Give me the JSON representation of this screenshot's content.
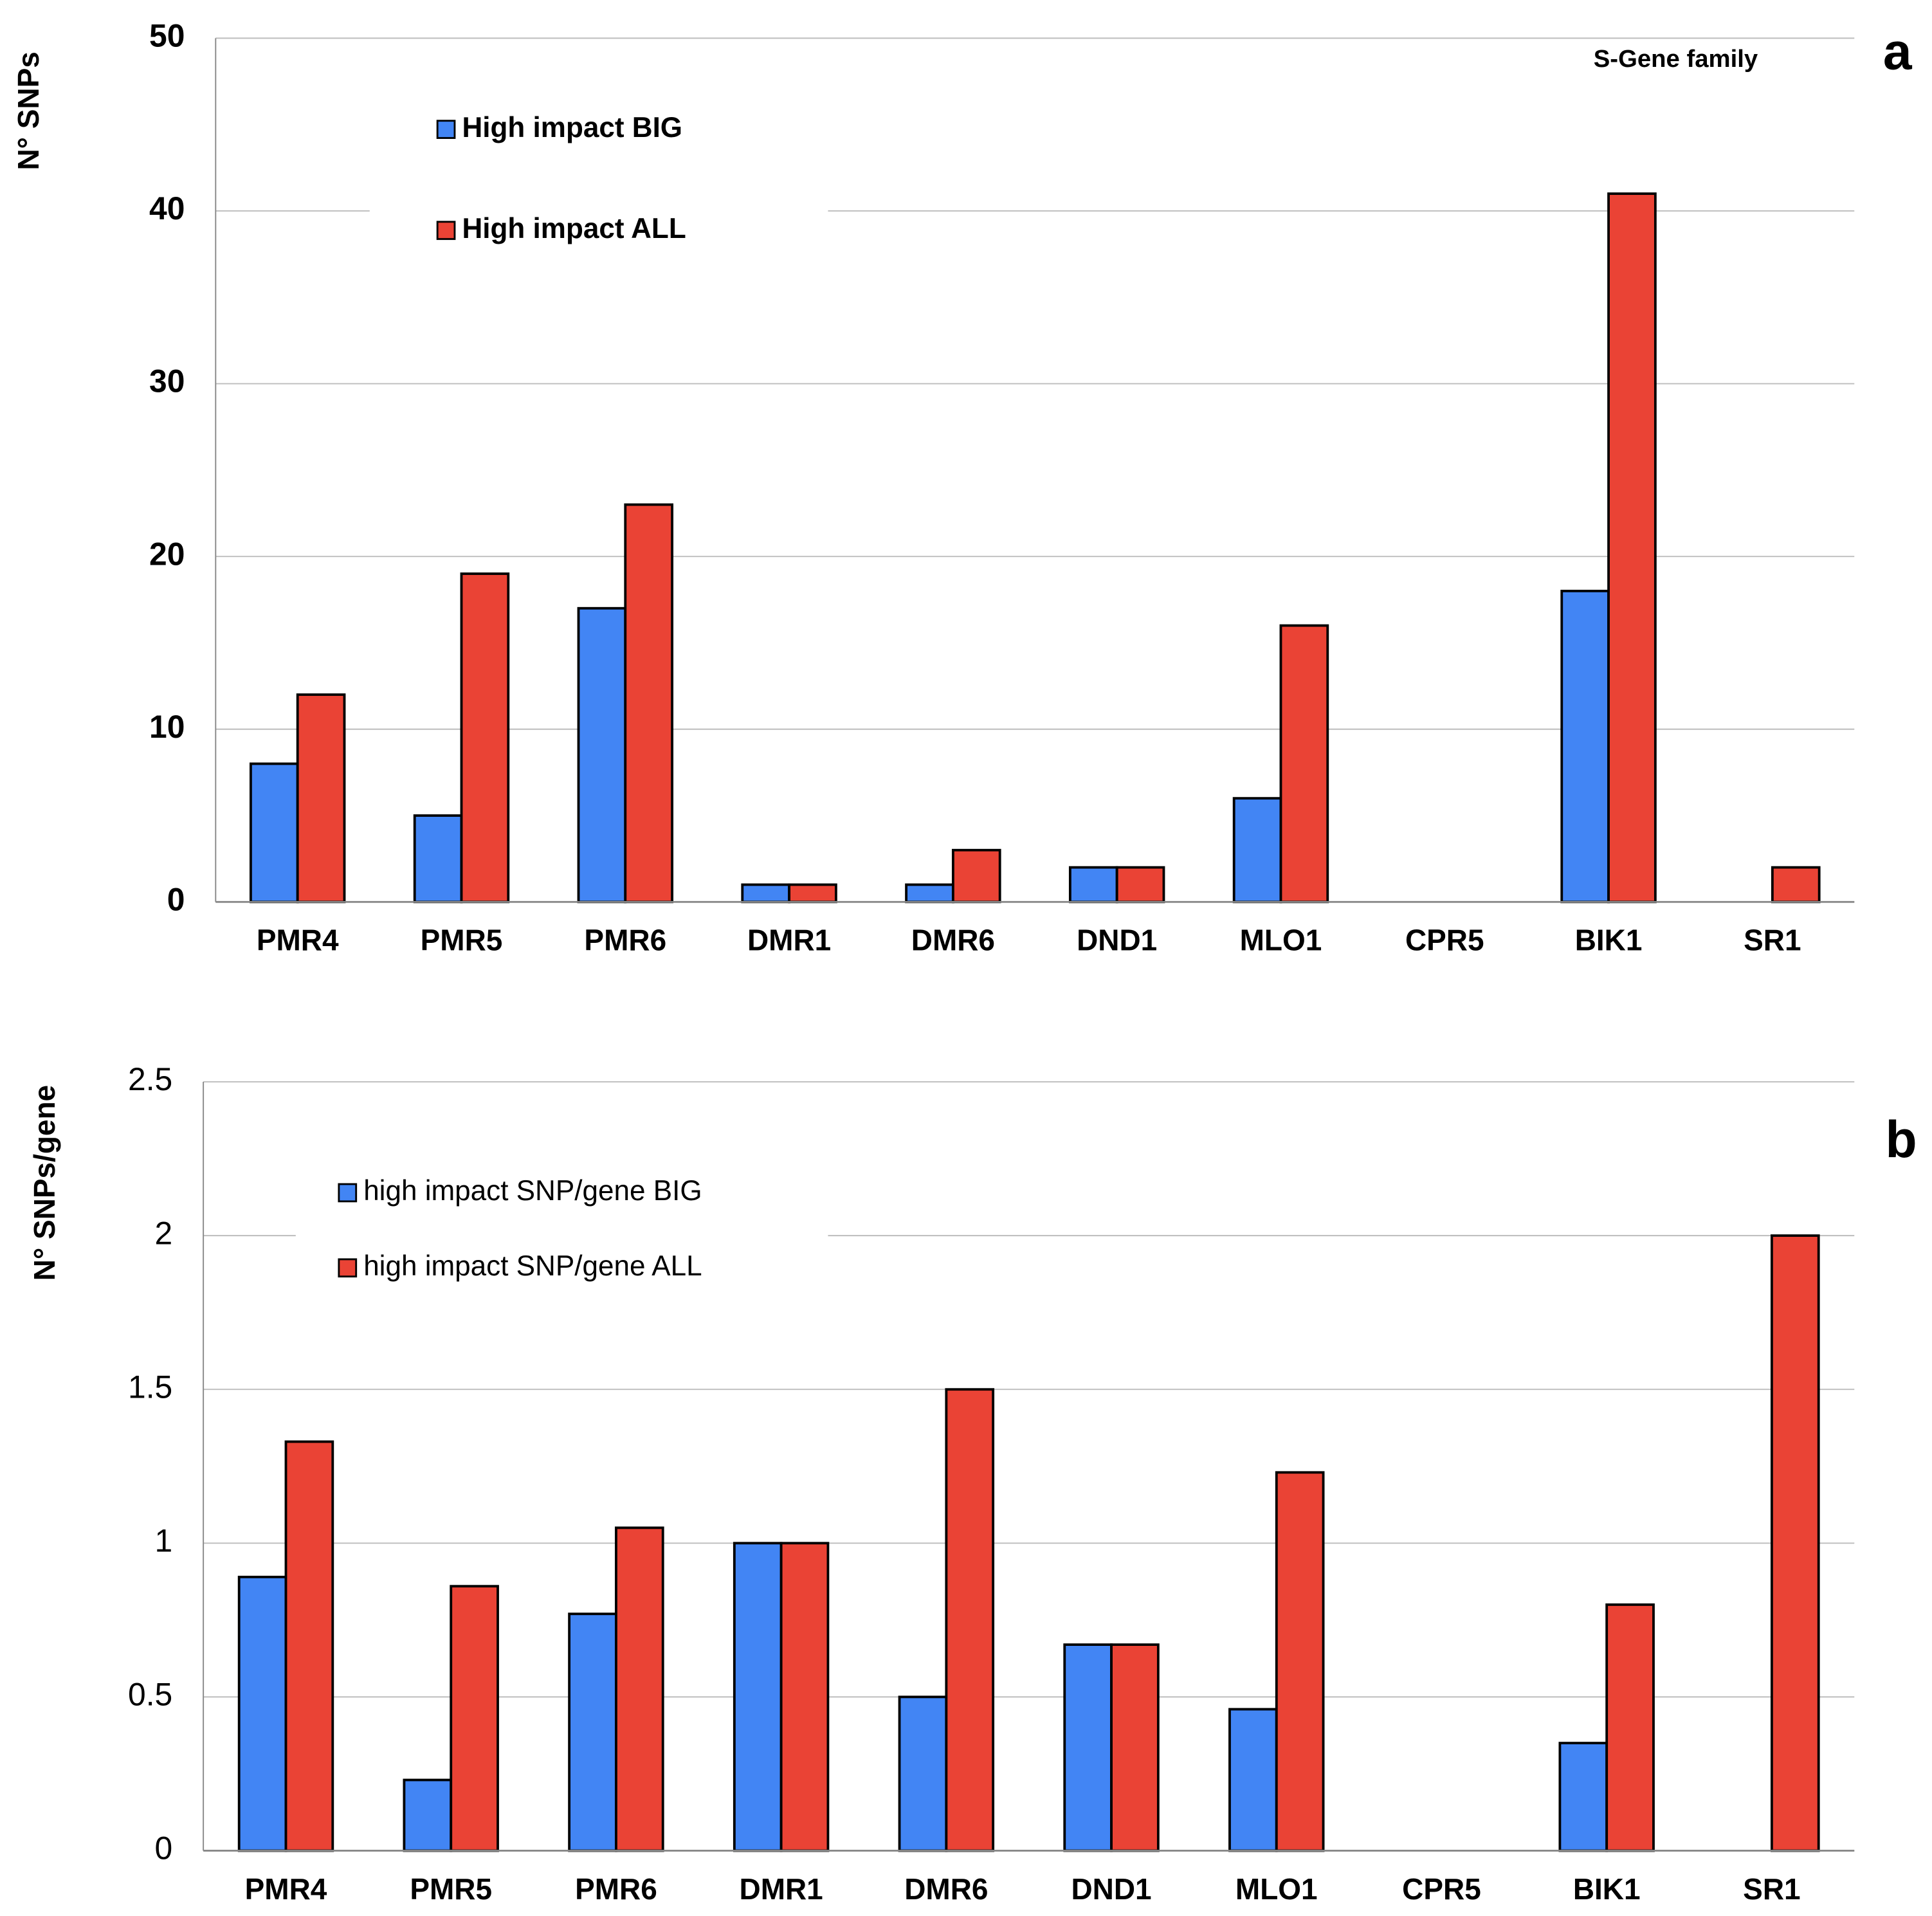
{
  "chart_data": [
    {
      "type": "bar",
      "y_label": "N° SNPs",
      "annotation": "S-Gene family",
      "panel_label": "a",
      "categories": [
        "PMR4",
        "PMR5",
        "PMR6",
        "DMR1",
        "DMR6",
        "DND1",
        "MLO1",
        "CPR5",
        "BIK1",
        "SR1"
      ],
      "series": [
        {
          "name": "High impact BIG",
          "color": "#4285f4",
          "values": [
            8,
            5,
            17,
            1,
            1,
            2,
            6,
            0,
            18,
            0
          ]
        },
        {
          "name": "High impact ALL",
          "color": "#ea4335",
          "values": [
            12,
            19,
            23,
            1,
            3,
            2,
            16,
            0,
            41,
            2
          ]
        }
      ],
      "ylim": [
        0,
        50
      ],
      "yticks": [
        0,
        10,
        20,
        30,
        40,
        50
      ],
      "grid": true
    },
    {
      "type": "bar",
      "y_label": "N° SNPs/gene",
      "panel_label": "b",
      "categories": [
        "PMR4",
        "PMR5",
        "PMR6",
        "DMR1",
        "DMR6",
        "DND1",
        "MLO1",
        "CPR5",
        "BIK1",
        "SR1"
      ],
      "series": [
        {
          "name": "high impact SNP/gene BIG",
          "color": "#4285f4",
          "values": [
            0.89,
            0.23,
            0.77,
            1,
            0.5,
            0.67,
            0.46,
            0,
            0.35,
            0
          ]
        },
        {
          "name": "high impact SNP/gene ALL",
          "color": "#ea4335",
          "values": [
            1.33,
            0.86,
            1.05,
            1,
            1.5,
            0.67,
            1.23,
            0,
            0.8,
            2
          ]
        }
      ],
      "ylim": [
        0,
        2.5
      ],
      "yticks": [
        0,
        0.5,
        1,
        1.5,
        2,
        2.5
      ],
      "grid": true
    }
  ]
}
